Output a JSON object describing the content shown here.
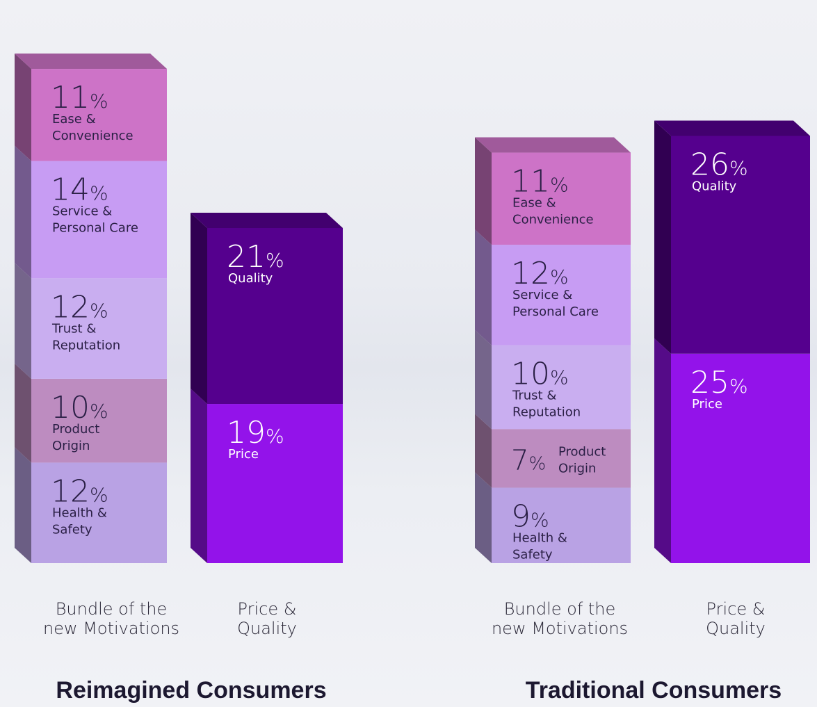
{
  "chart_data": [
    {
      "type": "bar",
      "stacked": true,
      "title": "Reimagined Consumers",
      "categories": [
        "Bundle of the new Motivations",
        "Price & Quality"
      ],
      "series": [
        {
          "name": "Health & Safety",
          "bar": 0,
          "value": 12,
          "color": "#b9a2e4"
        },
        {
          "name": "Product Origin",
          "bar": 0,
          "value": 10,
          "color": "#bd8cc0"
        },
        {
          "name": "Trust & Reputation",
          "bar": 0,
          "value": 12,
          "color": "#c9aef0"
        },
        {
          "name": "Service & Personal Care",
          "bar": 0,
          "value": 14,
          "color": "#c79cf3"
        },
        {
          "name": "Ease & Convenience",
          "bar": 0,
          "value": 11,
          "color": "#cd73c7"
        },
        {
          "name": "Price",
          "bar": 1,
          "value": 19,
          "color": "#9313ea"
        },
        {
          "name": "Quality",
          "bar": 1,
          "value": 21,
          "color": "#55008e"
        }
      ]
    },
    {
      "type": "bar",
      "stacked": true,
      "title": "Traditional Consumers",
      "categories": [
        "Bundle of the new Motivations",
        "Price & Quality"
      ],
      "series": [
        {
          "name": "Health & Safety",
          "bar": 0,
          "value": 9,
          "color": "#b9a2e4"
        },
        {
          "name": "Product Origin",
          "bar": 0,
          "value": 7,
          "color": "#bd8cc0"
        },
        {
          "name": "Trust & Reputation",
          "bar": 0,
          "value": 10,
          "color": "#c9aef0"
        },
        {
          "name": "Service & Personal Care",
          "bar": 0,
          "value": 12,
          "color": "#c79cf3"
        },
        {
          "name": "Ease & Convenience",
          "bar": 0,
          "value": 11,
          "color": "#cd73c7"
        },
        {
          "name": "Price",
          "bar": 1,
          "value": 25,
          "color": "#9313ea"
        },
        {
          "name": "Quality",
          "bar": 1,
          "value": 26,
          "color": "#55008e"
        }
      ]
    }
  ],
  "segment_labels": {
    "Ease & Convenience": [
      "Ease &",
      "Convenience"
    ],
    "Service & Personal Care": [
      "Service &",
      "Personal Care"
    ],
    "Trust & Reputation": [
      "Trust &",
      "Reputation"
    ],
    "Product Origin": [
      "Product",
      "Origin"
    ],
    "Health & Safety": [
      "Health &",
      "Safety"
    ],
    "Quality": [
      "Quality"
    ],
    "Price": [
      "Price"
    ]
  },
  "category_label_lines": [
    [
      "Bundle of the",
      "new Motivations"
    ],
    [
      "Price &",
      "Quality"
    ]
  ]
}
